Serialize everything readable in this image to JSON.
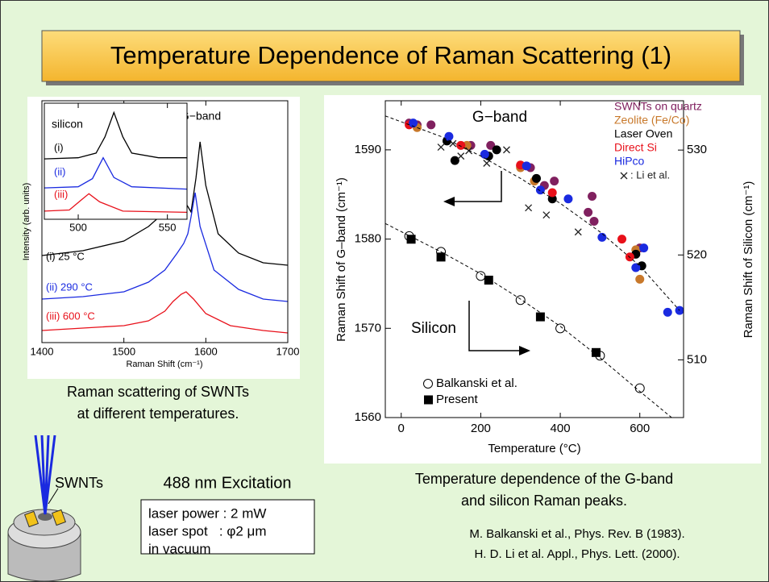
{
  "slide": {
    "title": "Temperature Dependence of Raman Scattering (1)",
    "left_caption": [
      "Raman scattering of SWNTs",
      "at different temperatures."
    ],
    "right_caption": [
      "Temperature dependence of the G-band",
      "and silicon Raman peaks."
    ],
    "sample_label": "SWNTs",
    "excitation": "488 nm Excitation",
    "conditions": [
      "laser power : 2 mW",
      "laser spot   : φ2 μm",
      "in vacuum"
    ],
    "references": [
      "M. Balkanski et al., Phys. Rev. B (1983).",
      "H. D. Li et al. Appl., Phys. Lett. (2000)."
    ]
  },
  "chart_data": [
    {
      "type": "line",
      "annotation": "G−band",
      "xlabel": "Raman Shift (cm⁻¹)",
      "ylabel": "Intensity (arb. units)",
      "xlim": [
        1400,
        1700
      ],
      "xticks": [
        1400,
        1500,
        1600,
        1700
      ],
      "ylim": [
        0,
        100
      ],
      "series": [
        {
          "name": "(i) 25 °C",
          "color": "#000000",
          "x": [
            1400,
            1450,
            1500,
            1530,
            1550,
            1565,
            1575,
            1582,
            1588,
            1593,
            1600,
            1615,
            1640,
            1670,
            1700
          ],
          "values": [
            36,
            38,
            42,
            48,
            54,
            62,
            58,
            54,
            68,
            83,
            65,
            45,
            37,
            33,
            32
          ]
        },
        {
          "name": "(ii) 290 °C",
          "color": "#1a2ae0",
          "x": [
            1400,
            1450,
            1500,
            1530,
            1550,
            1565,
            1573,
            1578,
            1582,
            1587,
            1593,
            1610,
            1640,
            1670,
            1700
          ],
          "values": [
            18,
            19,
            21,
            25,
            30,
            37,
            41,
            45,
            52,
            62,
            48,
            30,
            22,
            18,
            17
          ]
        },
        {
          "name": "(iii) 600 °C",
          "color": "#e8101a",
          "x": [
            1400,
            1450,
            1500,
            1530,
            1550,
            1560,
            1570,
            1576,
            1585,
            1600,
            1630,
            1670,
            1700
          ],
          "values": [
            5,
            6,
            7,
            9,
            13,
            17,
            20,
            21,
            18,
            12,
            7,
            5,
            4
          ]
        }
      ]
    },
    {
      "type": "line",
      "title": "silicon",
      "xlim": [
        481,
        561
      ],
      "xticks": [
        500,
        550
      ],
      "ylim": [
        0,
        100
      ],
      "series": [
        {
          "name": "(i)",
          "color": "#000000",
          "x": [
            481,
            500,
            510,
            515,
            520,
            525,
            530,
            545,
            561
          ],
          "values": [
            52,
            53,
            57,
            71,
            92,
            71,
            57,
            53,
            53
          ]
        },
        {
          "name": "(ii)",
          "color": "#1a2ae0",
          "x": [
            481,
            500,
            508,
            514,
            520,
            530,
            561
          ],
          "values": [
            27,
            28,
            35,
            53,
            36,
            28,
            26
          ]
        },
        {
          "name": "(iii)",
          "color": "#e8101a",
          "x": [
            481,
            495,
            502,
            506,
            512,
            525,
            561
          ],
          "values": [
            7,
            8,
            17,
            22,
            15,
            7,
            6
          ]
        }
      ]
    },
    {
      "type": "scatter",
      "annotations": [
        "G−band",
        "Silicon"
      ],
      "xlabel": "Temperature (°C)",
      "ylabel": "Raman Shift of G–band (cm⁻¹)",
      "y2label": "Raman Shift of Silicon (cm⁻¹)",
      "xlim": [
        -40,
        710
      ],
      "xticks": [
        0,
        200,
        400,
        600
      ],
      "ylim": [
        1560,
        1595.5
      ],
      "yticks": [
        1560,
        1570,
        1580,
        1590
      ],
      "y2lim": [
        504.5,
        534.7
      ],
      "y2ticks": [
        510,
        520,
        530
      ],
      "series": [
        {
          "name": "SWNTs on quartz",
          "color": "#80205f",
          "marker": "circle",
          "legend": "upper right",
          "x": [
            20,
            40,
            75,
            175,
            225,
            300,
            325,
            360,
            385,
            470,
            480,
            485,
            600
          ],
          "values": [
            1593,
            1592.8,
            1592.8,
            1590.5,
            1590.5,
            1588.2,
            1588,
            1586,
            1586.5,
            1583,
            1584.8,
            1582,
            1579
          ]
        },
        {
          "name": "Zeolite (Fe/Co)",
          "color": "#c8782a",
          "marker": "circle",
          "legend": "upper right",
          "x": [
            40,
            165,
            300,
            335,
            590,
            600
          ],
          "values": [
            1592.5,
            1590.5,
            1588,
            1586.5,
            1578.8,
            1575.5
          ]
        },
        {
          "name": "Laser Oven",
          "color": "#000000",
          "marker": "circle",
          "legend": "upper right",
          "x": [
            115,
            135,
            220,
            240,
            340,
            380,
            590,
            605
          ],
          "values": [
            1591,
            1588.8,
            1589.3,
            1590,
            1586.8,
            1584.5,
            1578.3,
            1577
          ]
        },
        {
          "name": "Direct Si",
          "color": "#e8101a",
          "marker": "circle",
          "legend": "upper right",
          "x": [
            20,
            150,
            300,
            380,
            555,
            575
          ],
          "values": [
            1592.8,
            1590.5,
            1588.3,
            1585.2,
            1580,
            1578
          ]
        },
        {
          "name": "HiPco",
          "color": "#1a2ae0",
          "marker": "circle",
          "legend": "upper right",
          "x": [
            30,
            120,
            210,
            315,
            350,
            420,
            505,
            590,
            610,
            670,
            700
          ],
          "values": [
            1593,
            1591.5,
            1589.5,
            1588.2,
            1585.5,
            1584.5,
            1580.2,
            1576.8,
            1579,
            1571.8,
            1572
          ]
        },
        {
          "name": ": Li et al.",
          "color": "#222222",
          "marker": "x",
          "legend": "upper right",
          "x": [
            100,
            130,
            150,
            170,
            215,
            265,
            320,
            365,
            445
          ],
          "values": [
            1590.3,
            1590.7,
            1589.3,
            1589.9,
            1588.5,
            1590,
            1583.5,
            1582.7,
            1580.8
          ]
        },
        {
          "name": "Balkanski et al.",
          "color": "#000000",
          "marker": "open-circle",
          "axis": "y2",
          "legend": "lower left",
          "x": [
            20,
            100,
            200,
            300,
            400,
            500,
            600
          ],
          "values": [
            521.8,
            520.3,
            518,
            515.7,
            513,
            510.4,
            507.3
          ]
        },
        {
          "name": "Present",
          "color": "#000000",
          "marker": "square",
          "axis": "y2",
          "legend": "lower left",
          "x": [
            25,
            100,
            220,
            350,
            490
          ],
          "values": [
            521.5,
            519.8,
            517.6,
            514.1,
            510.7
          ]
        },
        {
          "type": "line",
          "dash": true,
          "color": "#000000",
          "x": [
            -40,
            100,
            200,
            300,
            400,
            500,
            600,
            700
          ],
          "values": [
            1593.8,
            1591.5,
            1589.3,
            1586.8,
            1584,
            1580.8,
            1577,
            1572
          ]
        },
        {
          "type": "line",
          "dash": true,
          "color": "#000000",
          "axis": "y2",
          "x": [
            -40,
            100,
            200,
            300,
            400,
            500,
            600,
            680
          ],
          "values": [
            523,
            520.3,
            518.2,
            515.8,
            513.2,
            510.2,
            507,
            504.5
          ]
        }
      ]
    }
  ]
}
